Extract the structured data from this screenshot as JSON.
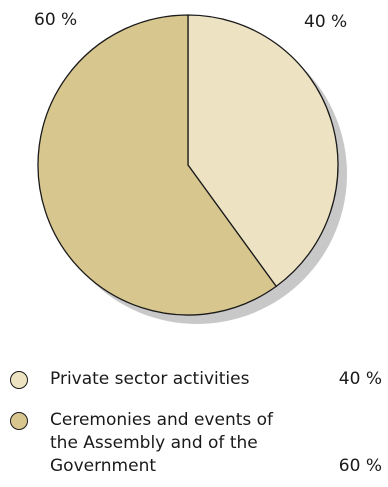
{
  "chart_data": {
    "type": "pie",
    "slices": [
      {
        "label": "Private sector activities",
        "value": 40,
        "display": "40 %",
        "color": "#ede3c3"
      },
      {
        "label": "Ceremonies and events of the Assembly and of the Government",
        "value": 60,
        "display": "60 %",
        "color": "#d8c68f"
      }
    ],
    "legend_placement": "bottom"
  },
  "outside_labels": {
    "left": "60 %",
    "right": "40 %"
  },
  "legend": [
    {
      "label": "Private sector activities",
      "value": "40 %",
      "color": "#ede3c3"
    },
    {
      "label_lines": [
        "Ceremonies and events of",
        "the Assembly and of the",
        "Government"
      ],
      "value": "60 %",
      "color": "#d8c68f"
    }
  ],
  "colors": {
    "shadow": "#c8c8c8",
    "outline": "#1a1a1a"
  }
}
